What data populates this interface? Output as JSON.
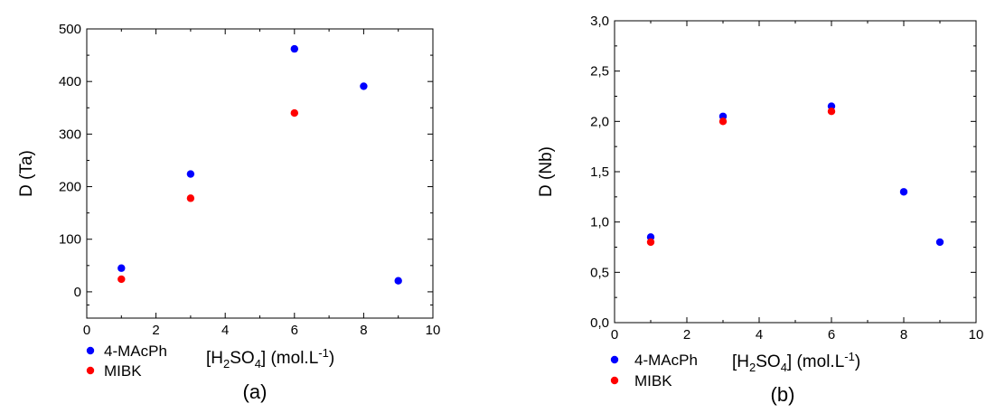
{
  "chart_data": [
    {
      "type": "scatter",
      "xlabel_parts": [
        "[H",
        "2",
        "SO",
        "4",
        "] (mol.L",
        "-1",
        ")"
      ],
      "ylabel": "D (Ta)",
      "caption": "(a)",
      "xlim": [
        0,
        10
      ],
      "ylim": [
        -50,
        500
      ],
      "x_ticks": [
        0,
        2,
        4,
        6,
        8,
        10
      ],
      "x_tick_labels": [
        "0",
        "2",
        "4",
        "6",
        "8",
        "10"
      ],
      "y_ticks": [
        0,
        100,
        200,
        300,
        400,
        500
      ],
      "y_tick_labels": [
        "0",
        "100",
        "200",
        "300",
        "400",
        "500"
      ],
      "grid": false,
      "legend_position": "bottom-left, below axes",
      "series": [
        {
          "name": "4-MAcPh",
          "color": "#0000ff",
          "x": [
            1,
            3,
            6,
            8,
            9
          ],
          "y": [
            45,
            224,
            462,
            391,
            21
          ]
        },
        {
          "name": "MIBK",
          "color": "#ff0000",
          "x": [
            1,
            3,
            6
          ],
          "y": [
            24,
            178,
            340
          ]
        }
      ]
    },
    {
      "type": "scatter",
      "xlabel_parts": [
        "[H",
        "2",
        "SO",
        "4",
        "] (mol.L",
        "-1",
        ")"
      ],
      "ylabel": "D (Nb)",
      "caption": "(b)",
      "xlim": [
        0,
        10
      ],
      "ylim": [
        0,
        3.0
      ],
      "x_ticks": [
        0,
        2,
        4,
        6,
        8,
        10
      ],
      "x_tick_labels": [
        "0",
        "2",
        "4",
        "6",
        "8",
        "10"
      ],
      "y_ticks": [
        0,
        0.5,
        1.0,
        1.5,
        2.0,
        2.5,
        3.0
      ],
      "y_tick_labels": [
        "0,0",
        "0,5",
        "1,0",
        "1,5",
        "2,0",
        "2,5",
        "3,0"
      ],
      "grid": false,
      "legend_position": "bottom-left, below axes",
      "series": [
        {
          "name": "4-MAcPh",
          "color": "#0000ff",
          "x": [
            1,
            3,
            6,
            8,
            9
          ],
          "y": [
            0.85,
            2.05,
            2.15,
            1.3,
            0.8
          ]
        },
        {
          "name": "MIBK",
          "color": "#ff0000",
          "x": [
            1,
            3,
            6
          ],
          "y": [
            0.8,
            2.0,
            2.1
          ]
        }
      ]
    }
  ]
}
